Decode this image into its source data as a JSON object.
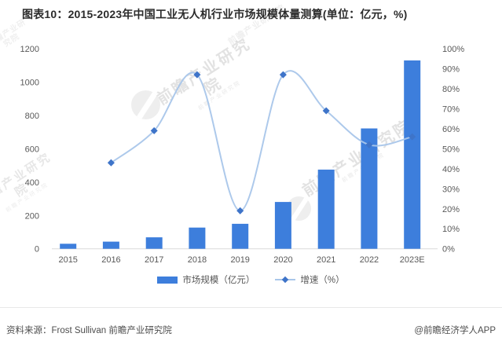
{
  "title": "图表10：2015-2023年中国工业无人机行业市场规模体量测算(单位：亿元，%)",
  "chart_data": {
    "type": "combo",
    "categories": [
      "2015",
      "2016",
      "2017",
      "2018",
      "2019",
      "2020",
      "2021",
      "2022",
      "2023E"
    ],
    "series": [
      {
        "name": "市场规模（亿元）",
        "type": "bar",
        "axis": "left",
        "values": [
          30,
          43,
          69,
          127,
          150,
          281,
          475,
          722,
          1130
        ]
      },
      {
        "name": "增速（%）",
        "type": "line",
        "axis": "right",
        "values": [
          null,
          43,
          59,
          87,
          19,
          87,
          69,
          52,
          56
        ]
      }
    ],
    "left_axis": {
      "min": 0,
      "max": 1200,
      "step": 200,
      "tick_labels": [
        "0",
        "200",
        "400",
        "600",
        "800",
        "1000",
        "1200"
      ]
    },
    "right_axis": {
      "min": 0,
      "max": 100,
      "step": 10,
      "tick_labels": [
        "0%",
        "10%",
        "20%",
        "30%",
        "40%",
        "50%",
        "60%",
        "70%",
        "80%",
        "90%",
        "100%"
      ]
    },
    "grid": false,
    "legend_position": "bottom",
    "colors": {
      "bar": "#3D7EDC",
      "line": "#A9C6EA",
      "marker": "#3E74C9"
    }
  },
  "legend": {
    "items": [
      {
        "label": "市场规模（亿元）"
      },
      {
        "label": "增速（%）"
      }
    ]
  },
  "footer": {
    "source": "资料来源：Frost Sullivan 前瞻产业研究院",
    "credit": "@前瞻经济学人APP"
  },
  "watermark": {
    "text": "前瞻产业研究院"
  }
}
